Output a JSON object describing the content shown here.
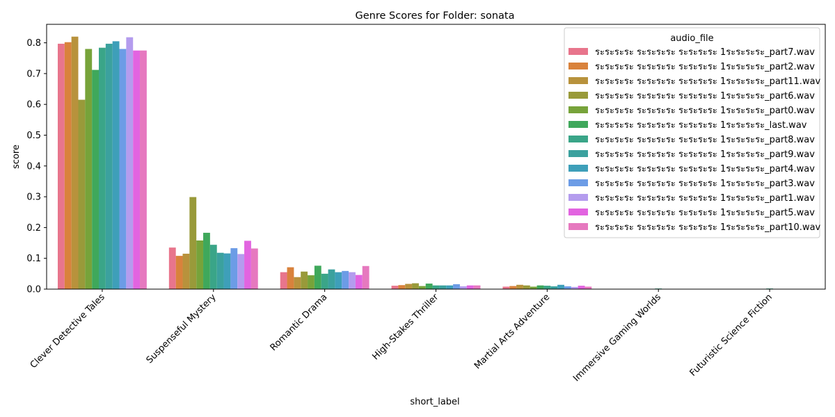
{
  "chart_data": {
    "type": "bar",
    "title": "Genre Scores for Folder: sonata",
    "xlabel": "short_label",
    "ylabel": "score",
    "ylim": [
      0,
      0.86
    ],
    "yticks": [
      "0.0",
      "0.1",
      "0.2",
      "0.3",
      "0.4",
      "0.5",
      "0.6",
      "0.7",
      "0.8"
    ],
    "grid": false,
    "legend_title": "audio_file",
    "legend_placement": "top-right",
    "categories": [
      "Clever Detective Tales",
      "Suspenseful Mystery",
      "Romantic Drama",
      "High-Stakes Thriller",
      "Martial Arts Adventure",
      "Immersive Gaming Worlds",
      "Futuristic Science Fiction"
    ],
    "series": [
      {
        "name": "ระระระระ ระระระระ ระระระระ 1ระระระระ_part7.wav",
        "color": "#e8758c",
        "values": [
          0.797,
          0.135,
          0.055,
          0.011,
          0.008,
          0.0,
          0.0
        ]
      },
      {
        "name": "ระระระระ ระระระระ ระระระระ 1ระระระระ_part2.wav",
        "color": "#d9823c",
        "values": [
          0.802,
          0.108,
          0.071,
          0.013,
          0.01,
          0.0,
          0.0
        ]
      },
      {
        "name": "ระระระระ ระระระระ ระระระระ 1ระระระระ_part11.wav",
        "color": "#b8923c",
        "values": [
          0.82,
          0.115,
          0.039,
          0.017,
          0.014,
          0.0,
          0.0
        ]
      },
      {
        "name": "ระระระระ ระระระระ ระระระระ 1ระระระระ_part6.wav",
        "color": "#999a3a",
        "values": [
          0.615,
          0.299,
          0.057,
          0.019,
          0.012,
          0.0,
          0.0
        ]
      },
      {
        "name": "ระระระระ ระระระระ ระระระระ 1ระระระระ_part0.wav",
        "color": "#77a33a",
        "values": [
          0.78,
          0.158,
          0.045,
          0.01,
          0.008,
          0.0,
          0.0
        ]
      },
      {
        "name": "ระระระระ ระระระระ ระระระระ 1ระระระระ_last.wav",
        "color": "#3fa85b",
        "values": [
          0.712,
          0.183,
          0.076,
          0.018,
          0.012,
          0.0,
          0.0
        ]
      },
      {
        "name": "ระระระระ ระระระระ ระระระระ 1ระระระระ_part8.wav",
        "color": "#3aa588",
        "values": [
          0.784,
          0.144,
          0.05,
          0.012,
          0.011,
          0.002,
          0.002
        ]
      },
      {
        "name": "ระระระระ ระระระระ ระระระระ 1ระระระระ_part9.wav",
        "color": "#3ba19e",
        "values": [
          0.797,
          0.118,
          0.064,
          0.012,
          0.009,
          0.0,
          0.0
        ]
      },
      {
        "name": "ระระระระ ระระระระ ระระระระ 1ระระระระ_part4.wav",
        "color": "#3e9fb9",
        "values": [
          0.805,
          0.116,
          0.055,
          0.012,
          0.014,
          0.0,
          0.0
        ]
      },
      {
        "name": "ระระระระ ระระระระ ระระระระ 1ระระระระ_part3.wav",
        "color": "#6c9ce6",
        "values": [
          0.78,
          0.133,
          0.059,
          0.016,
          0.009,
          0.0,
          0.0
        ]
      },
      {
        "name": "ระระระระ ระระระระ ระระระระ 1ระระระระ_part1.wav",
        "color": "#b49cee",
        "values": [
          0.818,
          0.114,
          0.055,
          0.009,
          0.007,
          0.0,
          0.0
        ]
      },
      {
        "name": "ระระระระ ระระระระ ระระระระ 1ระระระระ_part5.wav",
        "color": "#e264e0",
        "values": [
          0.775,
          0.157,
          0.046,
          0.012,
          0.011,
          0.0,
          0.0
        ]
      },
      {
        "name": "ระระระระ ระระระระ ระระระระ 1ระระระระ_part10.wav",
        "color": "#e679bf",
        "values": [
          0.775,
          0.132,
          0.075,
          0.012,
          0.008,
          0.0,
          0.0
        ]
      }
    ]
  }
}
